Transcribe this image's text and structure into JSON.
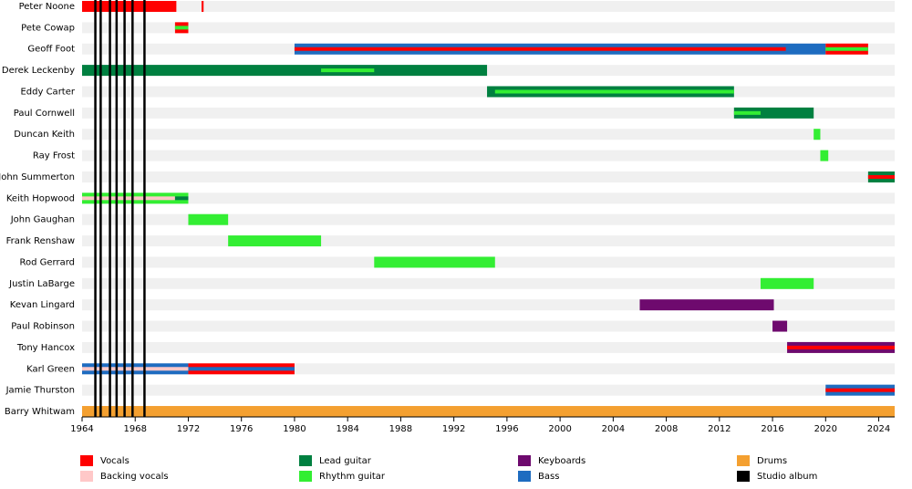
{
  "chart_data": {
    "type": "timeline",
    "roles": [
      {
        "name": "Vocals",
        "color": "#ff0000"
      },
      {
        "name": "Backing vocals",
        "color": "#ffc8c8"
      },
      {
        "name": "Lead guitar",
        "color": "#008040"
      },
      {
        "name": "Rhythm guitar",
        "color": "#33ee33"
      },
      {
        "name": "Keyboards",
        "color": "#6e0a6e"
      },
      {
        "name": "Bass",
        "color": "#1e6cc0"
      },
      {
        "name": "Drums",
        "color": "#f4a030"
      },
      {
        "name": "Studio album",
        "color": "#000000"
      }
    ],
    "members": [
      {
        "name": "Peter Noone",
        "bars": [
          {
            "role": "Vocals",
            "start": 1964,
            "end": 1971.1
          },
          {
            "role": "Vocals",
            "start": 1973,
            "end": 1973.15
          }
        ]
      },
      {
        "name": "Pete Cowap",
        "bars": [
          {
            "role": "Vocals",
            "start": 1971,
            "end": 1972
          },
          {
            "role": "Rhythm guitar",
            "start": 1971,
            "end": 1972
          }
        ]
      },
      {
        "name": "Geoff Foot",
        "bars": [
          {
            "role": "Bass",
            "start": 1980,
            "end": 2020
          },
          {
            "role": "Vocals",
            "start": 2020,
            "end": 2023.2
          },
          {
            "role": "Vocals",
            "start": 1980,
            "end": 2017
          },
          {
            "role": "Rhythm guitar",
            "start": 2020,
            "end": 2023.2
          }
        ]
      },
      {
        "name": "Derek Leckenby",
        "bars": [
          {
            "role": "Lead guitar",
            "start": 1964,
            "end": 1994.5
          },
          {
            "role": "Rhythm guitar",
            "start": 1982,
            "end": 1986
          }
        ]
      },
      {
        "name": "Eddy Carter",
        "bars": [
          {
            "role": "Lead guitar",
            "start": 1994.5,
            "end": 2013.1
          },
          {
            "role": "Rhythm guitar",
            "start": 1995.1,
            "end": 2013.1
          }
        ]
      },
      {
        "name": "Paul Cornwell",
        "bars": [
          {
            "role": "Lead guitar",
            "start": 2013.1,
            "end": 2019.1
          },
          {
            "role": "Rhythm guitar",
            "start": 2013.1,
            "end": 2015.1
          }
        ]
      },
      {
        "name": "Duncan Keith",
        "bars": [
          {
            "role": "Rhythm guitar",
            "start": 2019.1,
            "end": 2019.6
          }
        ]
      },
      {
        "name": "Ray Frost",
        "bars": [
          {
            "role": "Rhythm guitar",
            "start": 2019.6,
            "end": 2020.2
          }
        ]
      },
      {
        "name": "John Summerton",
        "bars": [
          {
            "role": "Lead guitar",
            "start": 2023.2,
            "end": 2025.2
          },
          {
            "role": "Vocals",
            "start": 2023.2,
            "end": 2025.2
          }
        ]
      },
      {
        "name": "Keith Hopwood",
        "bars": [
          {
            "role": "Rhythm guitar",
            "start": 1964,
            "end": 1972
          },
          {
            "role": "Backing vocals",
            "start": 1964,
            "end": 1971
          },
          {
            "role": "Lead guitar",
            "start": 1971,
            "end": 1972
          }
        ]
      },
      {
        "name": "John Gaughan",
        "bars": [
          {
            "role": "Rhythm guitar",
            "start": 1972,
            "end": 1975
          }
        ]
      },
      {
        "name": "Frank Renshaw",
        "bars": [
          {
            "role": "Rhythm guitar",
            "start": 1975,
            "end": 1982
          }
        ]
      },
      {
        "name": "Rod Gerrard",
        "bars": [
          {
            "role": "Rhythm guitar",
            "start": 1986,
            "end": 1995.1
          }
        ]
      },
      {
        "name": "Justin LaBarge",
        "bars": [
          {
            "role": "Rhythm guitar",
            "start": 2015.1,
            "end": 2019.1
          }
        ]
      },
      {
        "name": "Kevan Lingard",
        "bars": [
          {
            "role": "Keyboards",
            "start": 2006,
            "end": 2016.1
          }
        ]
      },
      {
        "name": "Paul Robinson",
        "bars": [
          {
            "role": "Keyboards",
            "start": 2016,
            "end": 2017.1
          }
        ]
      },
      {
        "name": "Tony Hancox",
        "bars": [
          {
            "role": "Keyboards",
            "start": 2017.1,
            "end": 2025.2
          },
          {
            "role": "Vocals",
            "start": 2017.1,
            "end": 2025.2
          }
        ]
      },
      {
        "name": "Karl Green",
        "bars": [
          {
            "role": "Bass",
            "start": 1964,
            "end": 1972
          },
          {
            "role": "Vocals",
            "start": 1972,
            "end": 1980
          },
          {
            "role": "Backing vocals",
            "start": 1964,
            "end": 1972
          },
          {
            "role": "Bass",
            "start": 1972,
            "end": 1980
          }
        ]
      },
      {
        "name": "Jamie Thurston",
        "bars": [
          {
            "role": "Bass",
            "start": 2020,
            "end": 2025.2
          },
          {
            "role": "Vocals",
            "start": 2020,
            "end": 2025.2
          }
        ]
      },
      {
        "name": "Barry Whitwam",
        "bars": [
          {
            "role": "Drums",
            "start": 1964,
            "end": 2025.2
          }
        ]
      }
    ],
    "albums": [
      1965.0,
      1965.4,
      1966.1,
      1966.6,
      1967.2,
      1967.8,
      1968.7
    ],
    "xlim": [
      1964,
      2025.2
    ],
    "xticks": [
      1964,
      1968,
      1972,
      1976,
      1980,
      1984,
      1988,
      1992,
      1996,
      2000,
      2004,
      2008,
      2012,
      2016,
      2020,
      2024
    ]
  }
}
